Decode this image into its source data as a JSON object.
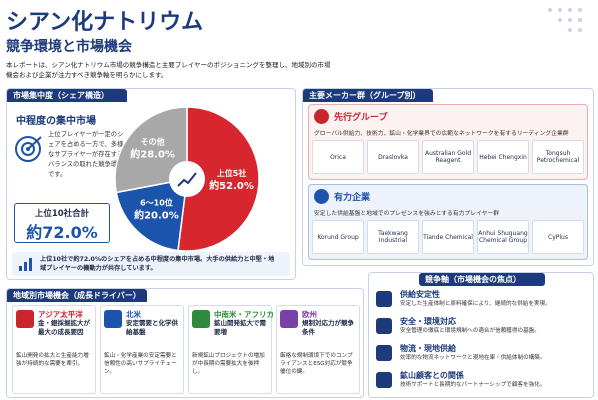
{
  "header": {
    "title": "シアン化ナトリウム",
    "subtitle": "競争環境と市場機会",
    "intro": "本レポートは、シアン化ナトリウム市場の競争構造と主要プレイヤーのポジショニングを整理し、地域別の市場機会および企業が注力すべき競争軸を明らかにします。"
  },
  "concentration": {
    "heading": "市場集中度（シェア構造）",
    "subheading": "中程度の集中市場",
    "description": "上位プレイヤーが一定のシェアを占める一方で、多様なサプライヤーが存在するバランスの取れた競争環境です。",
    "total_label": "上位10社合計",
    "total_value": "約72.0%",
    "note": "上位10社で約72.0%のシェアを占める中程度の集中市場。大手の供給力と中堅・地域プレイヤーの機動力が共存しています。"
  },
  "chart_data": {
    "type": "pie",
    "categories": [
      "上位5社",
      "6～10位",
      "その他"
    ],
    "values": [
      52,
      20,
      28
    ],
    "value_labels": [
      "約52.0%",
      "約20.0%",
      "約28.0%"
    ],
    "colors": [
      "#d7262e",
      "#1c54ad",
      "#a8a8a8"
    ]
  },
  "makers": {
    "heading": "主要メーカー群（グループ別）",
    "groups": [
      {
        "name": "先行グループ",
        "description": "グローバル供給力、技術力、鉱山・化学業界での広範なネットワークを有するリーディング企業群",
        "companies": [
          "Orica",
          "Draslovka",
          "Australian Gold Reagent",
          "Hebei Chengxin",
          "Tongsuh Petrochemical"
        ]
      },
      {
        "name": "有力企業",
        "description": "安定した供給基盤と地域でのプレゼンスを強みとする有力プレイヤー群",
        "companies": [
          "Korund Group",
          "Taekwang Industrial",
          "Tiande Chemical",
          "Anhui Shuguang Chemical Group",
          "CyPlus"
        ]
      }
    ]
  },
  "regions": {
    "heading": "地域別市場機会（成長ドライバー）",
    "items": [
      {
        "name": "アジア太平洋",
        "headline": "金・銀採掘拡大が最大の成長要因",
        "description": "鉱山開発の拡大と生産能力増強が持続的な需要を牽引。"
      },
      {
        "name": "北米",
        "headline": "安定需要と化学供給基盤",
        "description": "鉱山・化学産業の安定需要と信頼性の高いサプライチェーン。"
      },
      {
        "name": "中南米・アフリカ",
        "headline": "鉱山開発拡大で需要増",
        "description": "新規鉱山プロジェクトの増加が中長期の需要拡大を後押し。"
      },
      {
        "name": "欧州",
        "headline": "規制対応力が競争条件",
        "description": "厳格な規制環境下でのコンプライアンスとESG対応が競争優位の鍵。"
      }
    ]
  },
  "axes": {
    "heading": "競争軸（市場機会の焦点）",
    "items": [
      {
        "title": "供給安定性",
        "description": "安定した生産体制と原料確保により、継続的な供給を実現。"
      },
      {
        "title": "安全・環境対応",
        "description": "安全管理の徹底と環境規制への適合が信頼獲得の基盤。"
      },
      {
        "title": "物流・現地供給",
        "description": "効率的な物流ネットワークと現地在庫・供給体制の構築。"
      },
      {
        "title": "鉱山顧客との関係",
        "description": "技術サポートと長期的なパートナーシップで顧客を強化。"
      }
    ]
  }
}
